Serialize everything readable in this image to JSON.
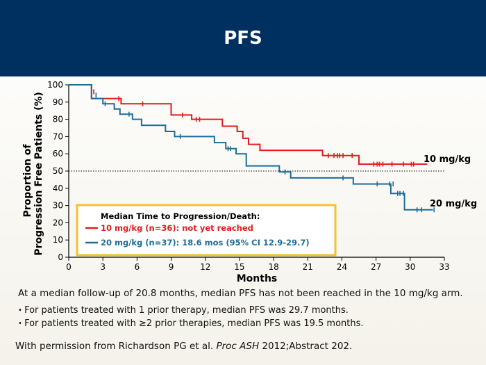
{
  "header": {
    "title": "PFS"
  },
  "chart_data": {
    "type": "line",
    "xlabel": "Months",
    "ylabel_line1": "Proportion of",
    "ylabel_line2": "Progression Free Patients (%)",
    "xlim": [
      0,
      33
    ],
    "ylim": [
      0,
      100
    ],
    "xticks": [
      0,
      3,
      6,
      9,
      12,
      15,
      18,
      21,
      24,
      27,
      30,
      33
    ],
    "yticks": [
      0,
      10,
      20,
      30,
      40,
      50,
      60,
      70,
      80,
      90,
      100
    ],
    "reference_line_y": 50,
    "series": [
      {
        "name": "10 mg/kg",
        "color": "#e21b1b",
        "steps": [
          [
            0,
            100
          ],
          [
            2,
            100
          ],
          [
            2,
            92
          ],
          [
            4.6,
            92
          ],
          [
            4.6,
            89
          ],
          [
            9,
            89
          ],
          [
            9,
            82.5
          ],
          [
            10.8,
            82.5
          ],
          [
            10.8,
            80
          ],
          [
            13.5,
            80
          ],
          [
            13.5,
            76
          ],
          [
            14.8,
            76
          ],
          [
            14.8,
            73
          ],
          [
            15.3,
            73
          ],
          [
            15.3,
            69
          ],
          [
            15.8,
            69
          ],
          [
            15.8,
            65.5
          ],
          [
            16.8,
            65.5
          ],
          [
            16.8,
            62
          ],
          [
            22.3,
            62
          ],
          [
            22.3,
            59
          ],
          [
            25.5,
            59
          ],
          [
            25.5,
            54
          ],
          [
            31.5,
            54
          ]
        ],
        "censors": [
          [
            2.2,
            96
          ],
          [
            4.4,
            92
          ],
          [
            6.5,
            89
          ],
          [
            10,
            82.5
          ],
          [
            11.2,
            80
          ],
          [
            11.5,
            80
          ],
          [
            22.8,
            59
          ],
          [
            23.3,
            59
          ],
          [
            23.6,
            59
          ],
          [
            23.8,
            59
          ],
          [
            24.1,
            59
          ],
          [
            24.9,
            59
          ],
          [
            26.8,
            54
          ],
          [
            27.1,
            54
          ],
          [
            27.3,
            54
          ],
          [
            27.6,
            54
          ],
          [
            28.4,
            54
          ],
          [
            29.4,
            54
          ],
          [
            30.1,
            54
          ],
          [
            30.3,
            54
          ]
        ]
      },
      {
        "name": "20 mg/kg",
        "color": "#1d6d99",
        "steps": [
          [
            0,
            100
          ],
          [
            2,
            100
          ],
          [
            2,
            92
          ],
          [
            3,
            92
          ],
          [
            3,
            89
          ],
          [
            4,
            89
          ],
          [
            4,
            86
          ],
          [
            4.5,
            86
          ],
          [
            4.5,
            83
          ],
          [
            5.6,
            83
          ],
          [
            5.6,
            80
          ],
          [
            6.4,
            80
          ],
          [
            6.4,
            76.5
          ],
          [
            8.5,
            76.5
          ],
          [
            8.5,
            73
          ],
          [
            9.3,
            73
          ],
          [
            9.3,
            70
          ],
          [
            12.8,
            70
          ],
          [
            12.8,
            66.5
          ],
          [
            13.8,
            66.5
          ],
          [
            13.8,
            63
          ],
          [
            14.7,
            63
          ],
          [
            14.7,
            60
          ],
          [
            15.6,
            60
          ],
          [
            15.6,
            53
          ],
          [
            18.5,
            53
          ],
          [
            18.5,
            49.5
          ],
          [
            19.5,
            49.5
          ],
          [
            19.5,
            46
          ],
          [
            25,
            46
          ],
          [
            25,
            42.5
          ],
          [
            28.3,
            42.5
          ],
          [
            28.3,
            37
          ],
          [
            29.5,
            37
          ],
          [
            29.5,
            27.5
          ],
          [
            32,
            27.5
          ]
        ],
        "censors": [
          [
            2.4,
            94
          ],
          [
            3.2,
            89
          ],
          [
            5.3,
            83
          ],
          [
            9.8,
            70
          ],
          [
            14,
            63
          ],
          [
            14.2,
            63
          ],
          [
            19,
            49.5
          ],
          [
            24.1,
            46
          ],
          [
            27.1,
            42.5
          ],
          [
            28.2,
            42.5
          ],
          [
            28.5,
            42.5
          ],
          [
            28.9,
            37
          ],
          [
            29.1,
            37
          ],
          [
            29.4,
            37
          ],
          [
            30.6,
            27.5
          ],
          [
            31.0,
            27.5
          ],
          [
            32.1,
            27.5
          ]
        ]
      }
    ],
    "end_labels": [
      "10 mg/kg",
      "20 mg/kg"
    ],
    "legend": {
      "heading": "Median Time to Progression/Death:",
      "entries": [
        {
          "text": "10 mg/kg (n=36): not yet reached",
          "color": "#e21b1b"
        },
        {
          "text": "20 mg/kg (n=37): 18.6 mos (95% CI 12.9-29.7)",
          "color": "#1d6d99"
        }
      ],
      "border_color": "#f2c230"
    }
  },
  "notes": {
    "summary": "At a median follow-up of 20.8 months, median PFS has not been reached in the 10 mg/kg arm.",
    "bullets": [
      "For patients treated with 1 prior therapy, median PFS was 29.7 months.",
      "For patients treated with ≥2 prior therapies, median PFS was 19.5 months."
    ]
  },
  "credit": {
    "prefix": "With permission from Richardson PG et al. ",
    "journal": "Proc ASH",
    "suffix": " 2012;Abstract 202."
  }
}
